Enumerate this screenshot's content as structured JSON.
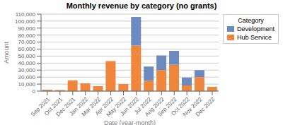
{
  "chart_data": {
    "type": "bar",
    "title": "Monthly revenue by category (no grants)",
    "xlabel": "Date (year-month)",
    "ylabel": "Amount",
    "categories": [
      "Sep 2021",
      "Oct 2021",
      "Dec 2021",
      "Jan 2022",
      "Mar 2022",
      "Apr 2022",
      "May 2022",
      "Jun 2022",
      "Jul 2022",
      "Aug 2022",
      "Sep 2022",
      "Oct 2022",
      "Nov 2022",
      "Dec 2022"
    ],
    "series": [
      {
        "name": "Hub Service",
        "color": "#f0853c",
        "values": [
          2000,
          1500,
          15500,
          11000,
          7000,
          43000,
          10000,
          65000,
          15000,
          30000,
          37500,
          8000,
          20000,
          6000
        ]
      },
      {
        "name": "Development",
        "color": "#6b8abf",
        "values": [
          0,
          0,
          0,
          0,
          0,
          0,
          0,
          41000,
          20000,
          21000,
          20000,
          11500,
          10000,
          0
        ]
      }
    ],
    "stacked": true,
    "ylim": [
      0,
      110000
    ],
    "yticks": [
      0,
      {
        "value": 10000,
        "label": "10,000"
      },
      {
        "value": 20000,
        "label": "20,000"
      },
      {
        "value": 30000,
        "label": "30,000"
      },
      {
        "value": 40000,
        "label": "40,000"
      },
      {
        "value": 50000,
        "label": "50,000"
      },
      {
        "value": 60000,
        "label": "60,000"
      },
      {
        "value": 70000,
        "label": "70,000"
      },
      {
        "value": 80000,
        "label": "80,000"
      },
      {
        "value": 90000,
        "label": "90,000"
      },
      {
        "value": 100000,
        "label": "100,000"
      },
      {
        "value": 110000,
        "label": "110,000"
      }
    ],
    "grid": true,
    "legend": "upper right",
    "legend_title": "Category"
  }
}
